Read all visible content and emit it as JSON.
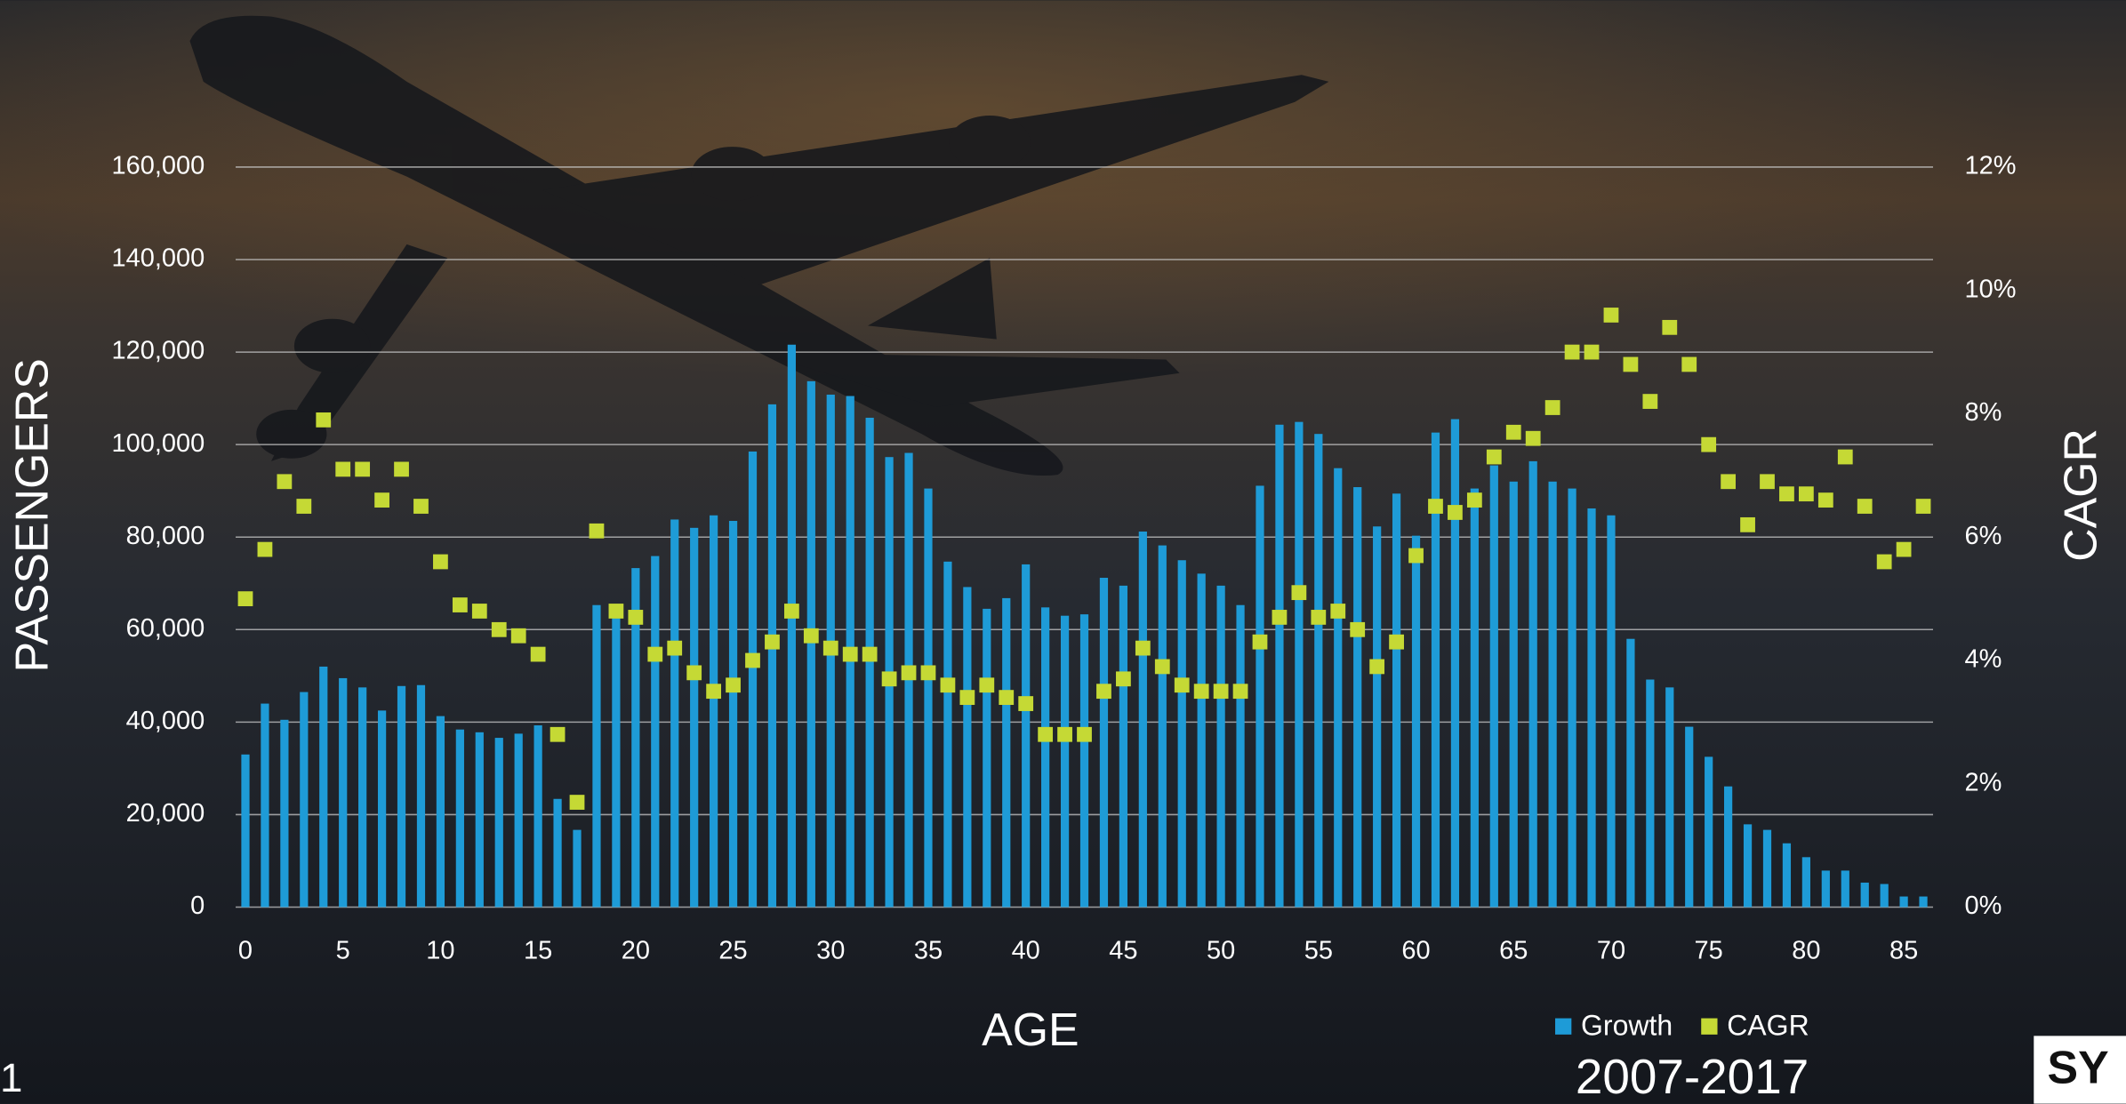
{
  "chart_data": {
    "type": "bar",
    "subtitle": "2007-2017",
    "x_label": "AGE",
    "y_label": "PASSENGERS",
    "y2_label": "CAGR",
    "x": [
      0,
      1,
      2,
      3,
      4,
      5,
      6,
      7,
      8,
      9,
      10,
      11,
      12,
      13,
      14,
      15,
      16,
      17,
      18,
      19,
      20,
      21,
      22,
      23,
      24,
      25,
      26,
      27,
      28,
      29,
      30,
      31,
      32,
      33,
      34,
      35,
      36,
      37,
      38,
      39,
      40,
      41,
      42,
      43,
      44,
      45,
      46,
      47,
      48,
      49,
      50,
      51,
      52,
      53,
      54,
      55,
      56,
      57,
      58,
      59,
      60,
      61,
      62,
      63,
      64,
      65,
      66,
      67,
      68,
      69,
      70,
      71,
      72,
      73,
      74,
      75,
      76,
      77,
      78,
      79,
      80,
      81,
      82,
      83,
      84,
      85,
      86
    ],
    "xlim": [
      -0.5,
      86.5
    ],
    "xticks": [
      0,
      5,
      10,
      15,
      20,
      25,
      30,
      35,
      40,
      45,
      50,
      55,
      60,
      65,
      70,
      75,
      80,
      85
    ],
    "ylim": [
      0,
      160000
    ],
    "yticks": [
      0,
      {
        "value": 20000,
        "label": "20,000"
      },
      {
        "value": 40000,
        "label": "40,000"
      },
      {
        "value": 60000,
        "label": "60,000"
      },
      {
        "value": 80000,
        "label": "80,000"
      },
      {
        "value": 100000,
        "label": "100,000"
      },
      {
        "value": 120000,
        "label": "120,000"
      },
      {
        "value": 140000,
        "label": "140,000"
      },
      {
        "value": 160000,
        "label": "160,000"
      }
    ],
    "y2lim": [
      0,
      12
    ],
    "y2ticks": [
      {
        "value": 0,
        "label": "0%"
      },
      {
        "value": 2,
        "label": "2%"
      },
      {
        "value": 4,
        "label": "4%"
      },
      {
        "value": 6,
        "label": "6%"
      },
      {
        "value": 8,
        "label": "8%"
      },
      {
        "value": 10,
        "label": "10%"
      },
      {
        "value": 12,
        "label": "12%"
      }
    ],
    "grid": true,
    "legend": "bottom-right",
    "series": [
      {
        "name": "Growth",
        "type": "bar",
        "color": "#1e9bd7",
        "values": [
          33000,
          44000,
          40500,
          46500,
          52000,
          49500,
          47500,
          42500,
          47800,
          48000,
          41300,
          38400,
          37800,
          36600,
          37500,
          39300,
          23400,
          16700,
          65300,
          64800,
          73300,
          75900,
          83800,
          82000,
          84700,
          83500,
          98500,
          108700,
          121600,
          113700,
          110800,
          110500,
          105800,
          97300,
          98200,
          90500,
          74700,
          69200,
          64500,
          66800,
          74100,
          64800,
          63000,
          63300,
          71200,
          69500,
          81200,
          78200,
          75000,
          72100,
          69500,
          65300,
          91100,
          104300,
          104900,
          102300,
          94900,
          90800,
          82300,
          89400,
          80300,
          102600,
          105500,
          90500,
          95500,
          92000,
          96400,
          92000,
          90500,
          86200,
          84700,
          58000,
          49200,
          47500,
          39000,
          32500,
          26100,
          17900,
          16700,
          13800,
          10800,
          7900,
          7900,
          5300,
          5000,
          2300,
          2300
        ]
      },
      {
        "name": "CAGR",
        "type": "scatter",
        "axis": "y2",
        "color": "#c5d935",
        "values": [
          5.0,
          5.8,
          6.9,
          6.5,
          7.9,
          7.1,
          7.1,
          6.6,
          7.1,
          6.5,
          5.6,
          4.9,
          4.8,
          4.5,
          4.4,
          4.1,
          2.8,
          1.7,
          6.1,
          4.8,
          4.7,
          4.1,
          4.2,
          3.8,
          3.5,
          3.6,
          4.0,
          4.3,
          4.8,
          4.4,
          4.2,
          4.1,
          4.1,
          3.7,
          3.8,
          3.8,
          3.6,
          3.4,
          3.6,
          3.4,
          3.3,
          2.8,
          2.8,
          2.8,
          3.5,
          3.7,
          4.2,
          3.9,
          3.6,
          3.5,
          3.5,
          3.5,
          4.3,
          4.7,
          5.1,
          4.7,
          4.8,
          4.5,
          3.9,
          4.3,
          5.7,
          6.5,
          6.4,
          6.6,
          7.3,
          7.7,
          7.6,
          8.1,
          9.0,
          9.0,
          9.6,
          8.8,
          8.2,
          9.4,
          8.8,
          7.5,
          6.9,
          6.2,
          6.9,
          6.7,
          6.7,
          6.6,
          7.3,
          6.5,
          5.6,
          5.8,
          6.5
        ]
      }
    ]
  },
  "slide_number": "1",
  "logo_text": "SY"
}
